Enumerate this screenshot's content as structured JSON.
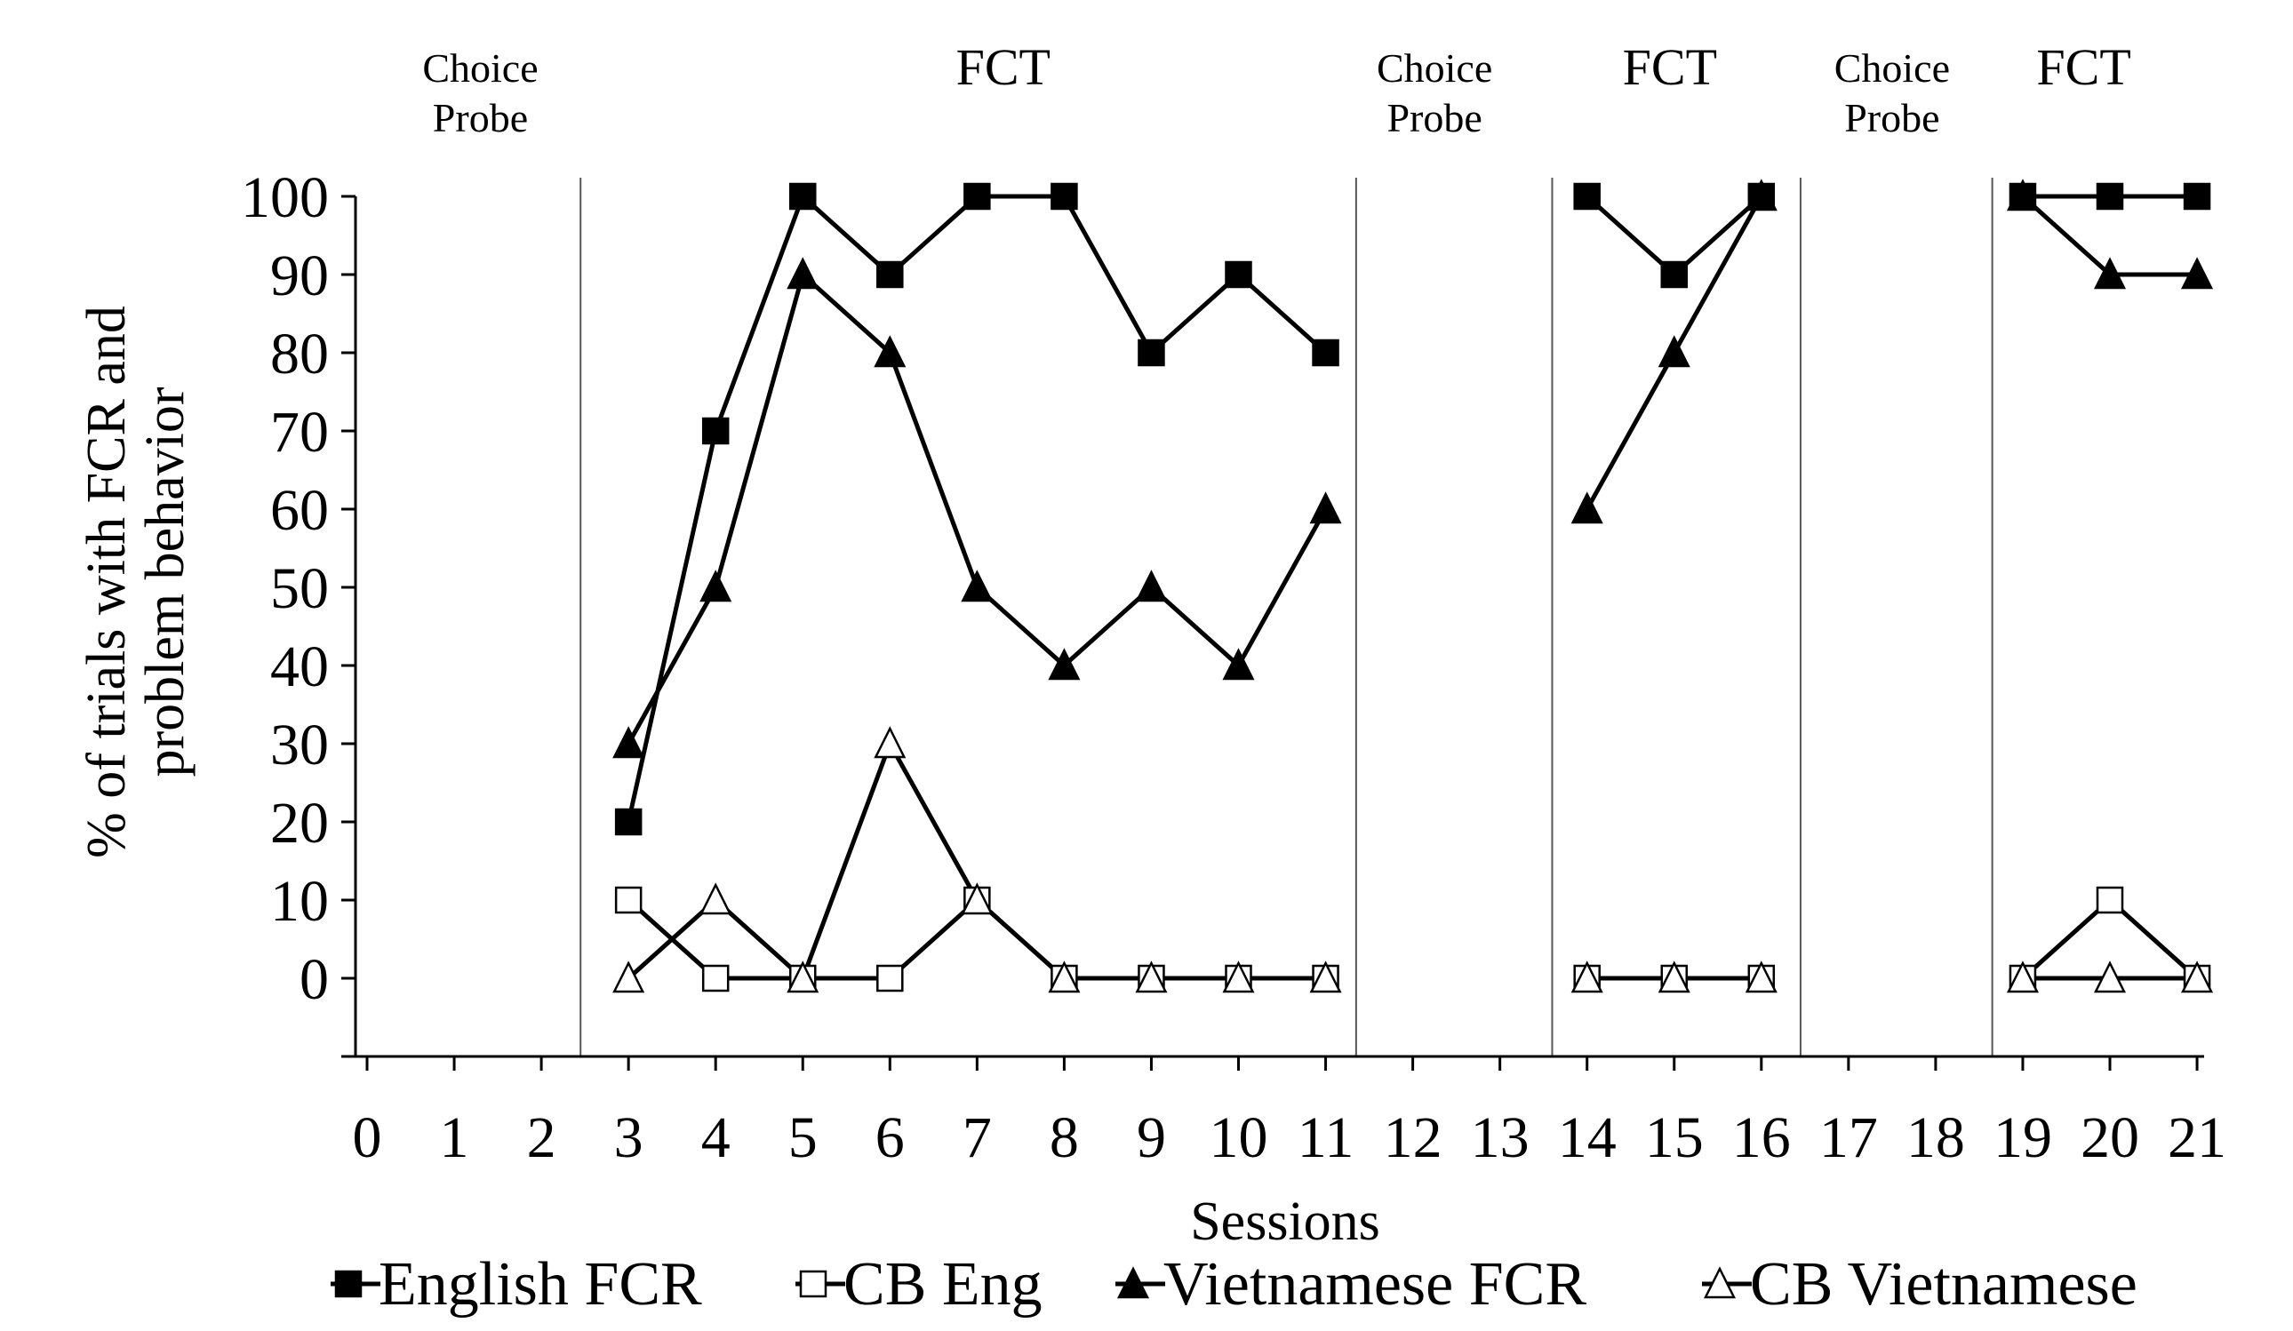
{
  "chart_data": {
    "type": "line",
    "xlabel": "Sessions",
    "ylabel": [
      "% of trials with FCR and",
      "problem behavior"
    ],
    "xlim": [
      0,
      21
    ],
    "ylim": [
      -10,
      100
    ],
    "x_ticks": [
      0,
      1,
      2,
      3,
      4,
      5,
      6,
      7,
      8,
      9,
      10,
      11,
      12,
      13,
      14,
      15,
      16,
      17,
      18,
      19,
      20,
      21
    ],
    "y_ticks": [
      0,
      10,
      20,
      30,
      40,
      50,
      60,
      70,
      80,
      90,
      100
    ],
    "phase_lines": [
      2.45,
      11.35,
      13.6,
      16.45,
      18.65
    ],
    "phases": [
      {
        "lines": [
          "Choice",
          "Probe"
        ],
        "x": 1.3,
        "size": "small"
      },
      {
        "lines": [
          "FCT"
        ],
        "x": 7.3,
        "size": "large"
      },
      {
        "lines": [
          "Choice",
          "Probe"
        ],
        "x": 12.25,
        "size": "small"
      },
      {
        "lines": [
          "FCT"
        ],
        "x": 14.95,
        "size": "large"
      },
      {
        "lines": [
          "Choice",
          "Probe"
        ],
        "x": 17.5,
        "size": "small"
      },
      {
        "lines": [
          "FCT"
        ],
        "x": 19.7,
        "size": "large"
      }
    ],
    "series": [
      {
        "name": "English FCR",
        "marker": "square",
        "fill": "#000000",
        "segments": [
          {
            "x": [
              3,
              4,
              5,
              6,
              7,
              8,
              9,
              10,
              11
            ],
            "y": [
              20,
              70,
              100,
              90,
              100,
              100,
              80,
              90,
              80
            ]
          },
          {
            "x": [
              14,
              15,
              16
            ],
            "y": [
              100,
              90,
              100
            ]
          },
          {
            "x": [
              19,
              20,
              21
            ],
            "y": [
              100,
              100,
              100
            ]
          }
        ]
      },
      {
        "name": "CB Eng",
        "marker": "square",
        "fill": "#ffffff",
        "segments": [
          {
            "x": [
              3,
              4,
              5,
              6,
              7,
              8,
              9,
              10,
              11
            ],
            "y": [
              10,
              0,
              0,
              0,
              10,
              0,
              0,
              0,
              0
            ]
          },
          {
            "x": [
              14,
              15,
              16
            ],
            "y": [
              0,
              0,
              0
            ]
          },
          {
            "x": [
              19,
              20,
              21
            ],
            "y": [
              0,
              10,
              0
            ]
          }
        ]
      },
      {
        "name": "Vietnamese FCR",
        "marker": "triangle",
        "fill": "#000000",
        "segments": [
          {
            "x": [
              3,
              4,
              5,
              6,
              7,
              8,
              9,
              10,
              11
            ],
            "y": [
              30,
              50,
              90,
              80,
              50,
              40,
              50,
              40,
              60
            ]
          },
          {
            "x": [
              14,
              15,
              16
            ],
            "y": [
              60,
              80,
              100
            ]
          },
          {
            "x": [
              19,
              20,
              21
            ],
            "y": [
              100,
              90,
              90
            ]
          }
        ]
      },
      {
        "name": "CB Vietnamese",
        "marker": "triangle",
        "fill": "#ffffff",
        "segments": [
          {
            "x": [
              3,
              4,
              5,
              6,
              7,
              8,
              9,
              10,
              11
            ],
            "y": [
              0,
              10,
              0,
              30,
              10,
              0,
              0,
              0,
              0
            ]
          },
          {
            "x": [
              14,
              15,
              16
            ],
            "y": [
              0,
              0,
              0
            ]
          },
          {
            "x": [
              19,
              20,
              21
            ],
            "y": [
              0,
              0,
              0
            ]
          }
        ]
      }
    ],
    "legend": {
      "placement": "bottom"
    }
  }
}
